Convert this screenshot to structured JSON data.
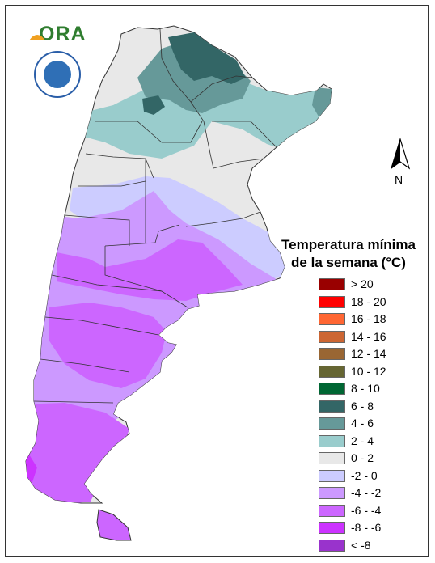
{
  "header": {
    "logo_text": "ORA"
  },
  "map": {
    "north_label": "N"
  },
  "legend": {
    "title_line1": "Temperatura mínima",
    "title_line2": "de la semana (°C)",
    "items": [
      {
        "label": "> 20",
        "color": "#990000"
      },
      {
        "label": "18 - 20",
        "color": "#ff0000"
      },
      {
        "label": "16 - 18",
        "color": "#ff6633"
      },
      {
        "label": "14 - 16",
        "color": "#cc6633"
      },
      {
        "label": "12 - 14",
        "color": "#996633"
      },
      {
        "label": "10 - 12",
        "color": "#666633"
      },
      {
        "label": "8 - 10",
        "color": "#006633"
      },
      {
        "label": "6 - 8",
        "color": "#336666"
      },
      {
        "label": "4 - 6",
        "color": "#669999"
      },
      {
        "label": "2 - 4",
        "color": "#99cccc"
      },
      {
        "label": "0 - 2",
        "color": "#e8e8e8"
      },
      {
        "label": "-2 - 0",
        "color": "#ccccff"
      },
      {
        "label": "-4 - -2",
        "color": "#cc99ff"
      },
      {
        "label": "-6 - -4",
        "color": "#cc66ff"
      },
      {
        "label": "-8 - -6",
        "color": "#cc33ff"
      },
      {
        "label": "< -8",
        "color": "#9933cc"
      }
    ]
  }
}
